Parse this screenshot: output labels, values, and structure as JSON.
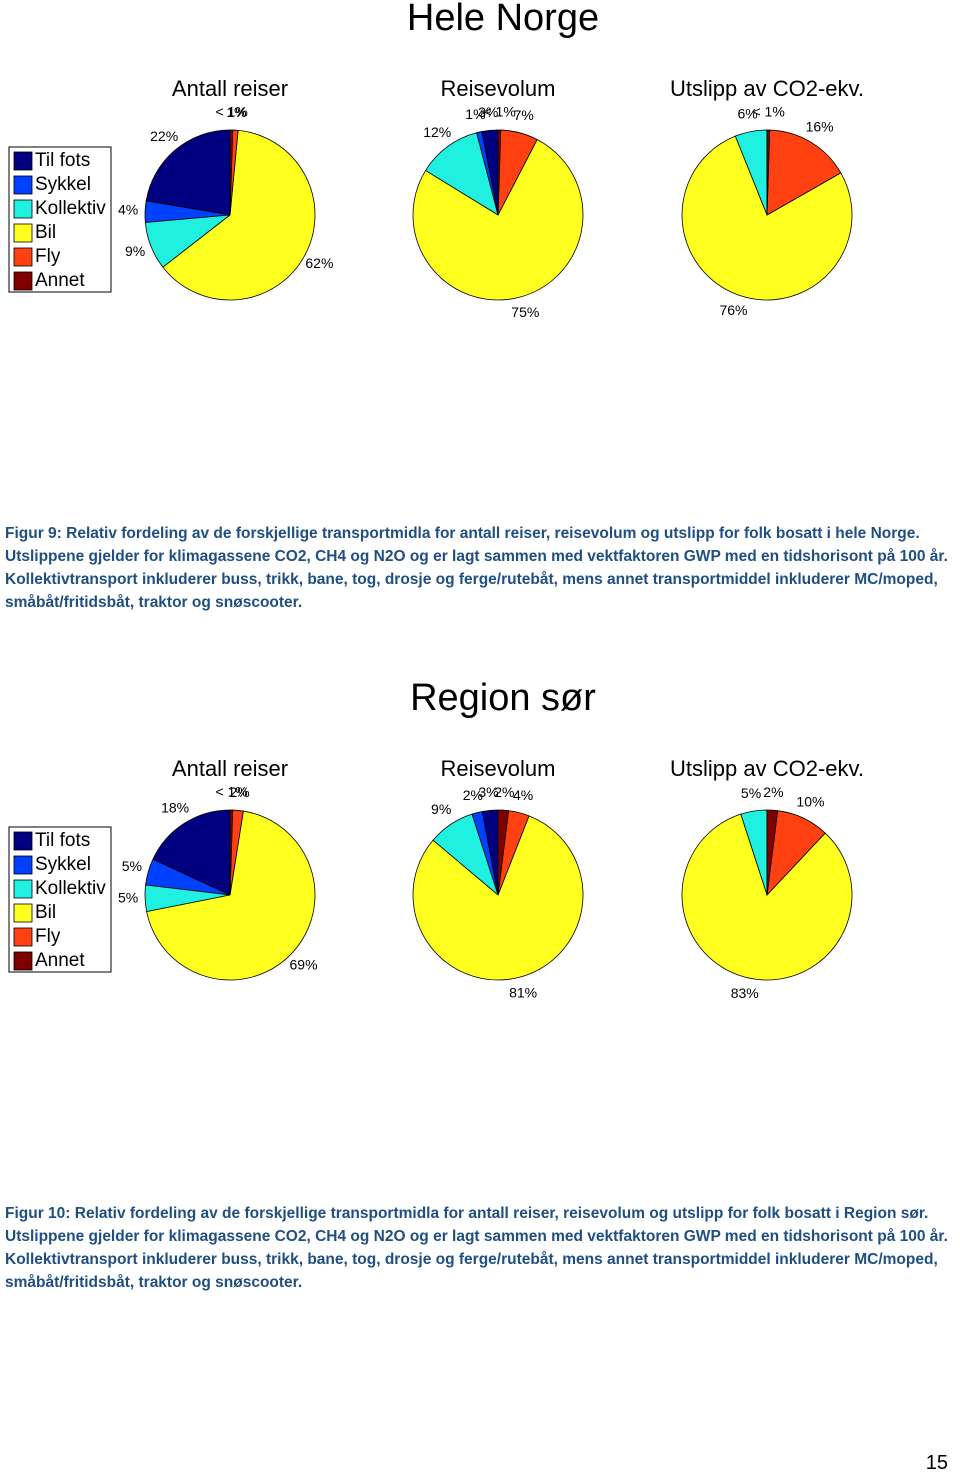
{
  "figures": [
    {
      "title": "Hele Norge",
      "categories": [
        "Til fots",
        "Sykkel",
        "Kollektiv",
        "Bil",
        "Fly",
        "Annet"
      ],
      "colors": [
        "#000080",
        "#0040ff",
        "#20f0e0",
        "#ffff20",
        "#ff4010",
        "#800000"
      ],
      "charts": [
        {
          "type": "pie",
          "title": "Antall reiser",
          "values": [
            22,
            4,
            9,
            62,
            1,
            0.5
          ],
          "value_labels": [
            "22%",
            "4%",
            "9%",
            "62%",
            "1%",
            "< 1%"
          ]
        },
        {
          "type": "pie",
          "title": "Reisevolum",
          "values": [
            3,
            1,
            12,
            75,
            7,
            0.5
          ],
          "value_labels": [
            "3%",
            "1%",
            "12%",
            "75%",
            "7%",
            "< 1%"
          ]
        },
        {
          "type": "pie",
          "title": "Utslipp av CO2-ekv.",
          "values": [
            0,
            0,
            6,
            76,
            16,
            0.5
          ],
          "value_labels": [
            null,
            null,
            "6%",
            "76%",
            "16%",
            "< 1%"
          ]
        }
      ],
      "caption": "Figur 9: Relativ fordeling av de forskjellige transportmidla for antall reiser, reisevolum og utslipp for folk bosatt i hele Norge. Utslippene gjelder for klimagassene CO2, CH4 og N2O og er lagt sammen med vektfaktoren GWP med en tidshorisont på 100 år. Kollektivtransport inkluderer buss, trikk, bane, tog, drosje og ferge/rutebåt, mens annet transportmiddel inkluderer MC/moped, småbåt/fritidsbåt, traktor og snøscooter."
    },
    {
      "title": "Region sør",
      "categories": [
        "Til fots",
        "Sykkel",
        "Kollektiv",
        "Bil",
        "Fly",
        "Annet"
      ],
      "colors": [
        "#000080",
        "#0040ff",
        "#20f0e0",
        "#ffff20",
        "#ff4010",
        "#800000"
      ],
      "charts": [
        {
          "type": "pie",
          "title": "Antall reiser",
          "values": [
            18,
            5,
            5,
            69,
            2,
            0.5
          ],
          "value_labels": [
            "18%",
            "5%",
            "5%",
            "69%",
            "2%",
            "< 1%"
          ]
        },
        {
          "type": "pie",
          "title": "Reisevolum",
          "values": [
            3,
            2,
            9,
            81,
            4,
            2
          ],
          "value_labels": [
            "3%",
            "2%",
            "9%",
            "81%",
            "4%",
            "2%"
          ]
        },
        {
          "type": "pie",
          "title": "Utslipp av CO2-ekv.",
          "values": [
            0,
            0,
            5,
            83,
            10,
            2
          ],
          "value_labels": [
            null,
            null,
            "5%",
            "83%",
            "10%",
            "2%"
          ]
        }
      ],
      "caption": "Figur 10: Relativ fordeling av de forskjellige transportmidla for antall reiser, reisevolum og utslipp for folk bosatt i Region sør. Utslippene gjelder for klimagassene CO2, CH4 og N2O og er lagt sammen med vektfaktoren GWP med en tidshorisont på 100 år. Kollektivtransport inkluderer buss, trikk, bane, tog, drosje og ferge/rutebåt, mens annet transportmiddel inkluderer MC/moped, småbåt/fritidsbåt, traktor og snøscooter."
    }
  ],
  "page_number": "15"
}
